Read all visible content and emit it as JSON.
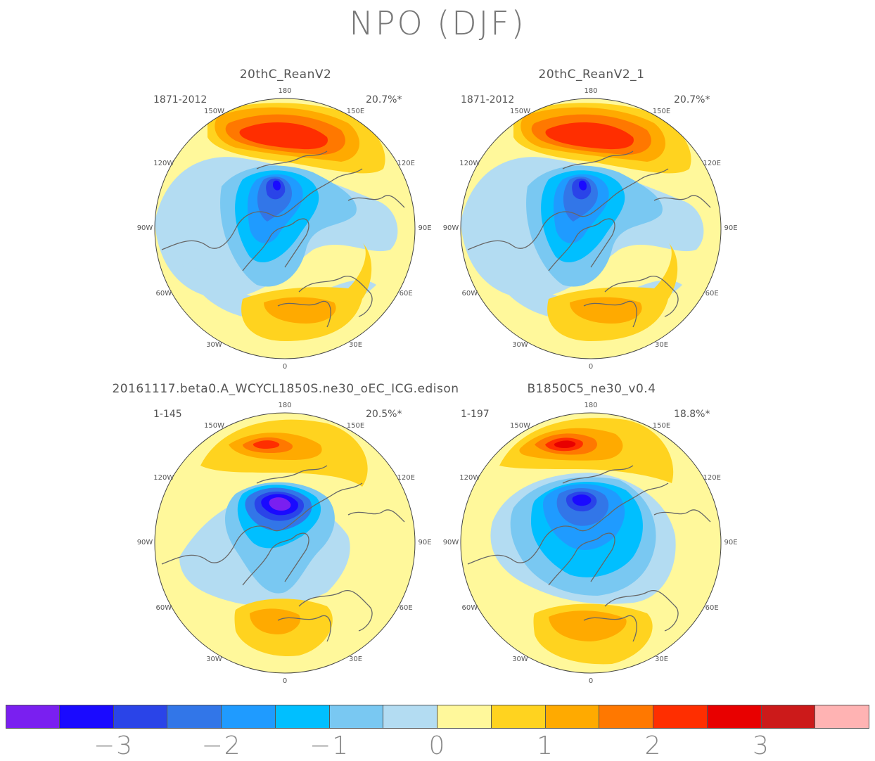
{
  "title": "NPO (DJF)",
  "lon_labels": {
    "top": "180",
    "upper_left": "150W",
    "upper_right": "150E",
    "left_upper": "120W",
    "right_upper": "120E",
    "left": "90W",
    "right": "90E",
    "left_lower": "60W",
    "right_lower": "60E",
    "lower_left": "30W",
    "lower_right": "30E",
    "bottom": "0"
  },
  "panels": [
    {
      "name": "20thC_ReanV2",
      "period": "1871-2012",
      "variance": "20.7%*"
    },
    {
      "name": "20thC_ReanV2_1",
      "period": "1871-2012",
      "variance": "20.7%*"
    },
    {
      "name": "20161117.beta0.A_WCYCL1850S.ne30_oEC_ICG.edison",
      "period": "1-145",
      "variance": "20.5%*"
    },
    {
      "name": "B1850C5_ne30_v0.4",
      "period": "1-197",
      "variance": "18.8%*"
    }
  ],
  "colorbar": {
    "colors": [
      "#7a1ff0",
      "#1a0aff",
      "#2a44e8",
      "#3276e8",
      "#1f9bff",
      "#00bfff",
      "#79c8f2",
      "#b3dcf2",
      "#fff89b",
      "#ffd31f",
      "#ffaa00",
      "#ff7800",
      "#ff2e00",
      "#e80000",
      "#cc1a1a",
      "#ffb3b3"
    ],
    "labels": [
      {
        "value": -3,
        "text": "−3"
      },
      {
        "value": -2,
        "text": "−2"
      },
      {
        "value": -1,
        "text": "−1"
      },
      {
        "value": 0,
        "text": "0"
      },
      {
        "value": 1,
        "text": "1"
      },
      {
        "value": 2,
        "text": "2"
      },
      {
        "value": 3,
        "text": "3"
      }
    ]
  }
}
